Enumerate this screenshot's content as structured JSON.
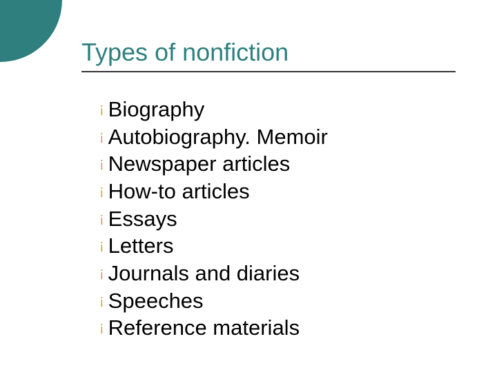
{
  "slide": {
    "title": "Types of nonfiction",
    "title_color": "#2f7f7f",
    "title_fontsize": 36,
    "rule_color": "#333333",
    "accent_circle_color": "#2f7f7f",
    "bullet_color": "#c9a95a",
    "bullet_glyph": "¡",
    "item_fontsize": 31,
    "item_color": "#000000",
    "background_color": "#ffffff",
    "items": [
      "Biography",
      "Autobiography. Memoir",
      "Newspaper articles",
      "How-to articles",
      "Essays",
      "Letters",
      "Journals and diaries",
      "Speeches",
      "Reference materials"
    ]
  }
}
